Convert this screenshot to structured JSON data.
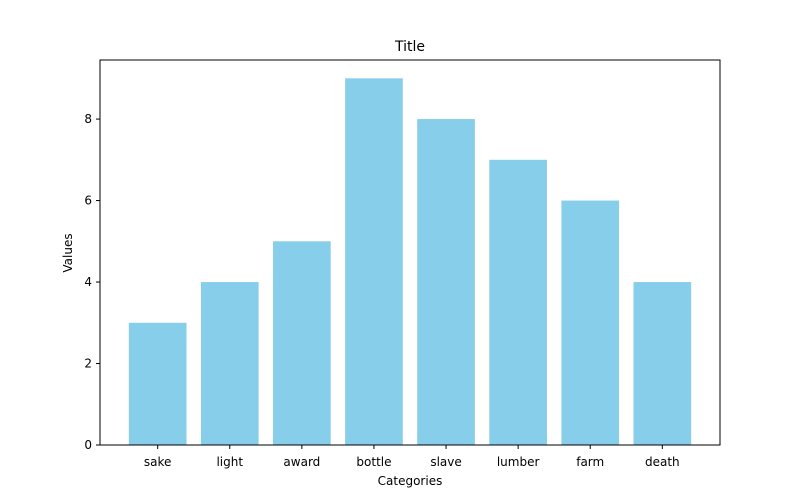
{
  "chart_data": {
    "type": "bar",
    "title": "Title",
    "xlabel": "Categories",
    "ylabel": "Values",
    "categories": [
      "sake",
      "light",
      "award",
      "bottle",
      "slave",
      "lumber",
      "farm",
      "death"
    ],
    "values": [
      3,
      4,
      5,
      9,
      8,
      7,
      6,
      4
    ],
    "ylim": [
      0,
      9.45
    ],
    "yticks": [
      0,
      2,
      4,
      6,
      8
    ],
    "bar_color": "#87CEEB",
    "grid": false,
    "legend": "none"
  }
}
